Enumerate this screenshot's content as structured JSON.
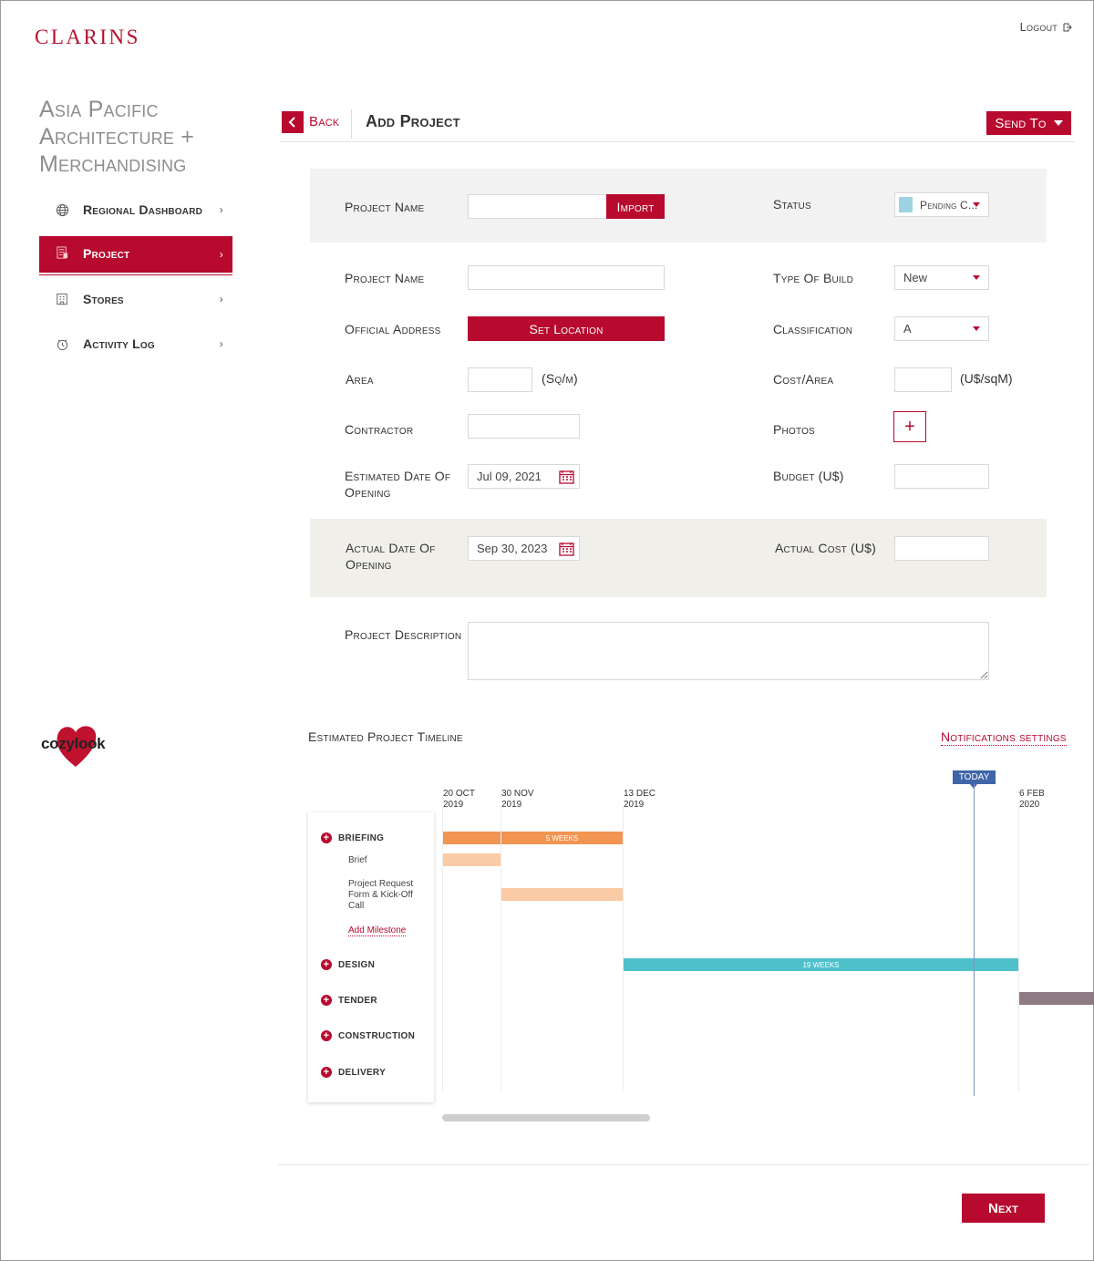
{
  "brand": {
    "logo": "CLARINS",
    "accent": "#b70a2e"
  },
  "header": {
    "logout_label": "Logout",
    "logout_icon": "logout-icon"
  },
  "sidebar": {
    "title": "Asia Pacific Architecture + Merchandising",
    "items": [
      {
        "label": "Regional Dashboard",
        "icon": "globe-icon",
        "active": false
      },
      {
        "label": "Project",
        "icon": "project-icon",
        "active": true
      },
      {
        "label": "Stores",
        "icon": "store-icon",
        "active": false
      },
      {
        "label": "Activity Log",
        "icon": "activity-log-icon",
        "active": false
      }
    ],
    "partner_logo": "cozylook"
  },
  "page": {
    "back_label": "Back",
    "title": "Add Project",
    "send_to_label": "Send To"
  },
  "form": {
    "import_row": {
      "label": "Project Name",
      "value": "",
      "import_label": "Import"
    },
    "status": {
      "label": "Status",
      "value": "Pending C...",
      "swatch_color": "#9fd3e1"
    },
    "project_name": {
      "label": "Project Name",
      "value": ""
    },
    "type_of_build": {
      "label": "Type Of Build",
      "value": "New"
    },
    "official_address": {
      "label": "Official Address",
      "button": "Set Location"
    },
    "classification": {
      "label": "Classification",
      "value": "A"
    },
    "area": {
      "label": "Area",
      "value": "",
      "unit": "(Sq/m)"
    },
    "cost_area": {
      "label": "Cost/Area",
      "value": "",
      "unit": "(U$/sqM)"
    },
    "contractor": {
      "label": "Contractor",
      "value": ""
    },
    "photos": {
      "label": "Photos",
      "add": "+"
    },
    "est_opening": {
      "label": "Estimated Date Of Opening",
      "value": "Jul 09, 2021"
    },
    "budget": {
      "label": "Budget (U$)",
      "value": ""
    },
    "actual_opening": {
      "label": "Actual Date Of Opening",
      "value": "Sep 30, 2023"
    },
    "actual_cost": {
      "label": "Actual Cost (U$)",
      "value": ""
    },
    "description": {
      "label": "Project Description",
      "value": ""
    }
  },
  "timeline": {
    "title": "Estimated Project Timeline",
    "notifications_label": "Notifications settings",
    "today_label": "TODAY",
    "dates": [
      {
        "day": "20 OCT",
        "year": "2019"
      },
      {
        "day": "30 NOV",
        "year": "2019"
      },
      {
        "day": "13 DEC",
        "year": "2019"
      },
      {
        "day": "6 FEB",
        "year": "2020"
      }
    ],
    "phases": [
      "BRIEFING",
      "DESIGN",
      "TENDER",
      "CONSTRUCTION",
      "DELIVERY"
    ],
    "briefing_subitems": [
      "Brief",
      "Project Request Form & Kick-Off Call"
    ],
    "add_milestone": "Add Milestone",
    "bars": {
      "briefing": "5 WEEKS",
      "design": "19 WEEKS"
    },
    "colors": {
      "briefing": "#f29452",
      "briefing_light": "#fbcba6",
      "design": "#4ec0c9",
      "tender": "#8e7a82",
      "today": "#3f66a8"
    }
  },
  "footer": {
    "next_label": "Next"
  }
}
